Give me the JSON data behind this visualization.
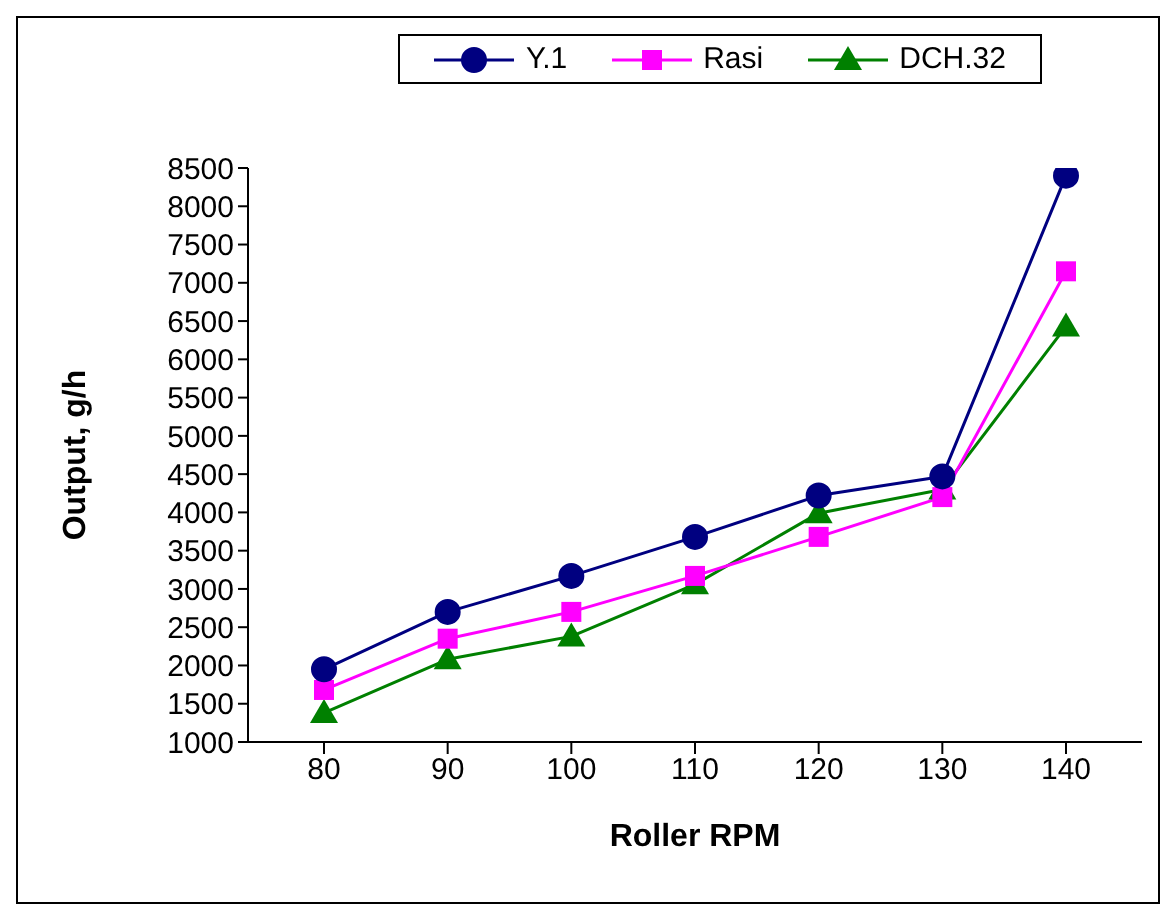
{
  "chart_data": {
    "type": "line",
    "xlabel": "Roller RPM",
    "ylabel": "Output, g/h",
    "categories": [
      "80",
      "90",
      "100",
      "110",
      "120",
      "130",
      "140"
    ],
    "series": [
      {
        "name": "Y.1",
        "color": "#000080",
        "marker": "circle",
        "values": [
          1950,
          2700,
          3170,
          3680,
          4220,
          4470,
          8400
        ]
      },
      {
        "name": "Rasi",
        "color": "#ff00ff",
        "marker": "square",
        "values": [
          1680,
          2350,
          2700,
          3170,
          3680,
          4200,
          7150
        ]
      },
      {
        "name": "DCH.32",
        "color": "#008000",
        "marker": "triangle",
        "values": [
          1380,
          2080,
          2380,
          3060,
          3990,
          4300,
          6430
        ]
      }
    ],
    "ylim": [
      1000,
      8500
    ],
    "yticks": [
      1000,
      1500,
      2000,
      2500,
      3000,
      3500,
      4000,
      4500,
      5000,
      5500,
      6000,
      6500,
      7000,
      7500,
      8000,
      8500
    ],
    "grid": false,
    "legend": "top"
  }
}
